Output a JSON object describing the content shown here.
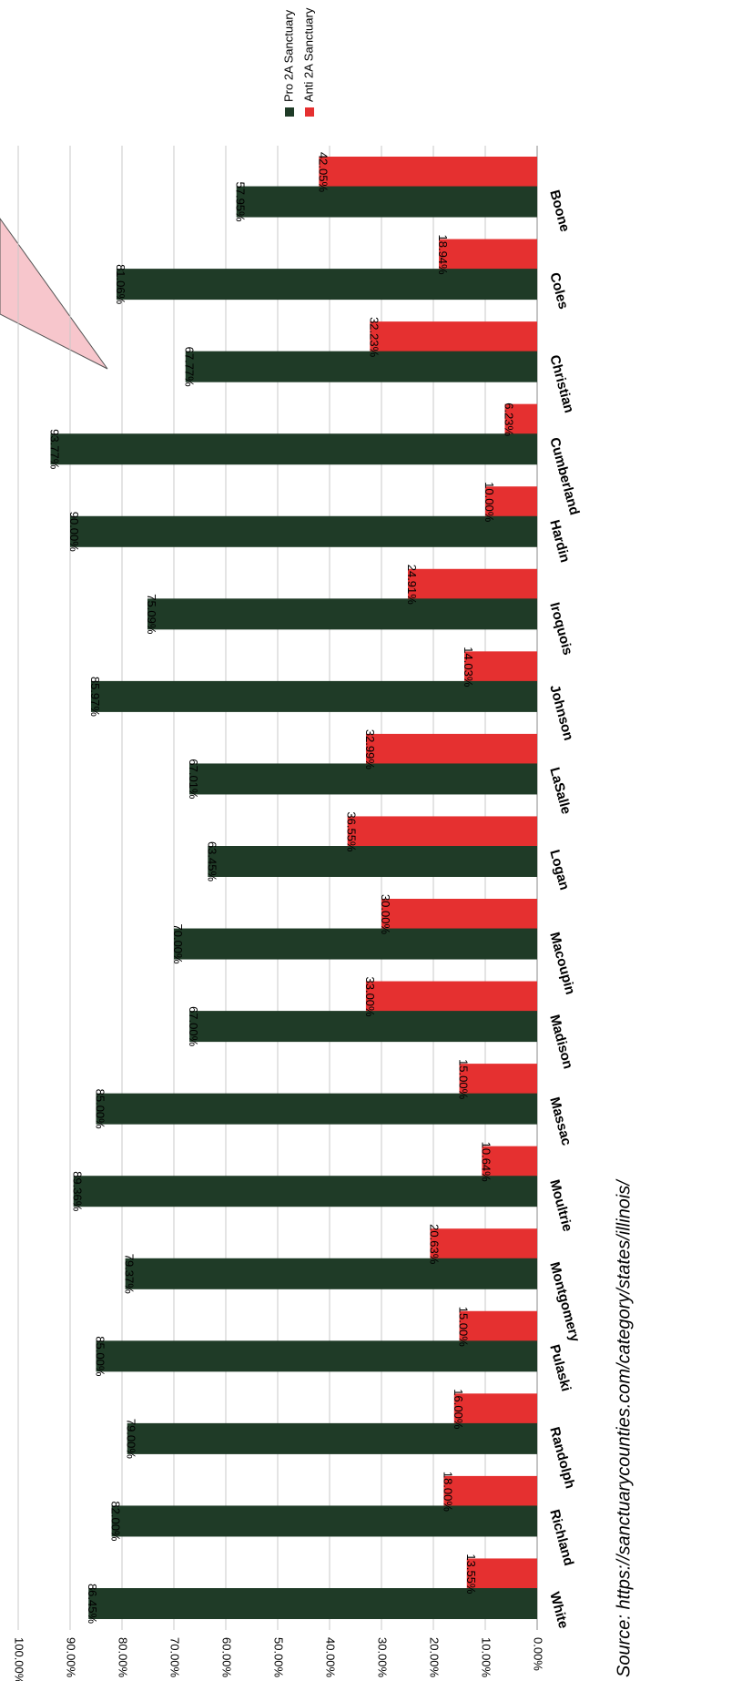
{
  "chart_data": {
    "type": "bar",
    "title": "",
    "xlabel": "",
    "ylabel": "",
    "ylim": [
      0,
      100
    ],
    "y_ticks": [
      "0.00%",
      "10.00%",
      "20.00%",
      "30.00%",
      "40.00%",
      "50.00%",
      "60.00%",
      "70.00%",
      "80.00%",
      "90.00%",
      "100.00%"
    ],
    "categories": [
      "Boone",
      "Coles",
      "Christian",
      "Cumberland",
      "Hardin",
      "Iroquois",
      "Johnson",
      "LaSalle",
      "Logan",
      "Macoupin",
      "Madison",
      "Massac",
      "Moultrie",
      "Montgomery",
      "Pulaski",
      "Randolph",
      "Richland",
      "White"
    ],
    "series": [
      {
        "name": "Pro 2A Sanctuary",
        "color": "#1f3b27",
        "values": [
          57.95,
          81.06,
          67.77,
          93.77,
          90.0,
          75.09,
          85.97,
          67.01,
          63.45,
          70.0,
          67.0,
          85.0,
          89.36,
          79.37,
          85.0,
          79.0,
          82.0,
          86.45
        ],
        "labels": [
          "57.95%",
          "81.06%",
          "67.77%",
          "93.77%",
          "90.00%",
          "75.09%",
          "85.97%",
          "67.01%",
          "63.45%",
          "70.00%",
          "67.00%",
          "85.00%",
          "89.36%",
          "79.37%",
          "85.00%",
          "79.00%",
          "82.00%",
          "86.45%"
        ]
      },
      {
        "name": "Anti 2A Sanctuary",
        "color": "#e53030",
        "values": [
          42.05,
          18.94,
          32.23,
          6.23,
          10.0,
          24.91,
          14.03,
          32.99,
          36.55,
          30.0,
          33.0,
          15.0,
          10.64,
          20.63,
          15.0,
          16.0,
          18.0,
          13.55
        ],
        "labels": [
          "42.05%",
          "18.94%",
          "32.23%",
          "6.23%",
          "10.00%",
          "24.91%",
          "14.03%",
          "32.99%",
          "36.55%",
          "30.00%",
          "33.00%",
          "15.00%",
          "10.64%",
          "20.63%",
          "15.00%",
          "16.00%",
          "18.00%",
          "13.55%"
        ]
      }
    ],
    "orientation": "rotated-90-clockwise",
    "legend": "top-right",
    "grid": true
  },
  "source_text": "Source: https://sanctuarycounties.com/category/states/illinois/",
  "colors": {
    "pro": "#1f3b27",
    "anti": "#e53030",
    "callout": "#f7c6cc",
    "grid": "#c8c8c8"
  }
}
